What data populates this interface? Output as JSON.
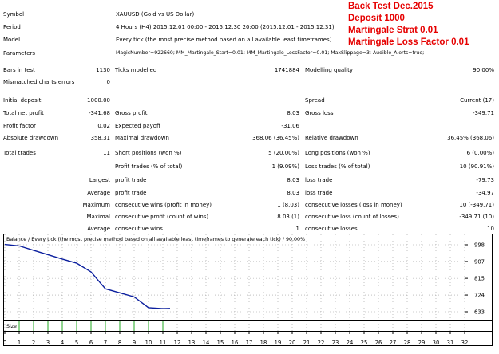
{
  "report": {
    "symbol_label": "Symbol",
    "symbol_value": "XAUUSD (Gold vs US Dollar)",
    "period_label": "Period",
    "period_value": "4 Hours (H4) 2015.12.01 00:00 - 2015.12.30 20:00 (2015.12.01 - 2015.12.31)",
    "model_label": "Model",
    "model_value": "Every tick (the most precise method based on all available least timeframes)",
    "parameters_label": "Parameters",
    "parameters_value": "MagicNumber=922660; MM_Martingale_Start=0.01; MM_Martingale_LossFactor=0.01; MaxSlippage=3; Audible_Alerts=true;",
    "bars_label": "Bars in test",
    "bars_value": "1130",
    "ticks_label": "Ticks modelled",
    "ticks_value": "1741884",
    "quality_label": "Modelling quality",
    "quality_value": "90.00%",
    "mismatch_label": "Mismatched charts errors",
    "mismatch_value": "0",
    "initial_deposit_label": "Initial deposit",
    "initial_deposit_value": "1000.00",
    "spread_label": "Spread",
    "spread_value": "Current (17)",
    "total_net_label": "Total net profit",
    "total_net_value": "-341.68",
    "gross_profit_label": "Gross profit",
    "gross_profit_value": "8.03",
    "gross_loss_label": "Gross loss",
    "gross_loss_value": "-349.71",
    "profit_factor_label": "Profit factor",
    "profit_factor_value": "0.02",
    "expected_payoff_label": "Expected payoff",
    "expected_payoff_value": "-31.06",
    "abs_dd_label": "Absolute drawdown",
    "abs_dd_value": "358.31",
    "max_dd_label": "Maximal drawdown",
    "max_dd_value": "368.06 (36.45%)",
    "rel_dd_label": "Relative drawdown",
    "rel_dd_value": "36.45% (368.06)",
    "total_trades_label": "Total trades",
    "total_trades_value": "11",
    "short_label": "Short positions (won %)",
    "short_value": "5 (20.00%)",
    "long_label": "Long positions (won %)",
    "long_value": "6 (0.00%)",
    "profit_trades_label": "Profit trades (% of total)",
    "profit_trades_value": "1 (9.09%)",
    "loss_trades_label": "Loss trades (% of total)",
    "loss_trades_value": "10 (90.91%)",
    "largest_label": "Largest",
    "largest_profit_label": "profit trade",
    "largest_profit_value": "8.03",
    "largest_loss_label": "loss trade",
    "largest_loss_value": "-79.73",
    "average_label": "Average",
    "average_profit_label": "profit trade",
    "average_profit_value": "8.03",
    "average_loss_label": "loss trade",
    "average_loss_value": "-34.97",
    "maximum_label": "Maximum",
    "max_cons_wins_label": "consecutive wins (profit in money)",
    "max_cons_wins_value": "1 (8.03)",
    "max_cons_losses_label": "consecutive losses (loss in money)",
    "max_cons_losses_value": "10 (-349.71)",
    "maximal_label": "Maximal",
    "maximal_profit_label": "consecutive profit (count of wins)",
    "maximal_profit_value": "8.03 (1)",
    "maximal_loss_label": "consecutive loss (count of losses)",
    "maximal_loss_value": "-349.71 (10)",
    "average2_label": "Average",
    "avg_cons_wins_label": "consecutive wins",
    "avg_cons_wins_value": "1",
    "avg_cons_losses_label": "consecutive losses",
    "avg_cons_losses_value": "10"
  },
  "overlay": {
    "line1": "Back Test Dec.2015",
    "line2": "Deposit 1000",
    "line3": "Martingale Strat 0.01",
    "line4": "Martingale Loss Factor 0.01"
  },
  "colors": {
    "balance_line": "#0b1f9e",
    "size_bars": "#22a822",
    "overlay_text": "#e60000",
    "grid": "#9a9a9a"
  },
  "chart_data": {
    "type": "line",
    "title": "Balance / Every tick (the most precise method based on all available least timeframes to generate each tick) / 90.00%",
    "size_label": "Size",
    "x_ticks": [
      "0",
      "1",
      "2",
      "3",
      "4",
      "5",
      "6",
      "7",
      "8",
      "9",
      "10",
      "11",
      "12",
      "13",
      "14",
      "15",
      "16",
      "17",
      "18",
      "19",
      "20",
      "21",
      "22",
      "23",
      "24",
      "25",
      "26",
      "27",
      "28",
      "29",
      "30",
      "31",
      "32"
    ],
    "y_ticks": [
      "998",
      "907",
      "815",
      "724",
      "633"
    ],
    "xlim": [
      0,
      32
    ],
    "ylim": [
      633,
      998
    ],
    "series": [
      {
        "x": [
          0,
          1,
          2,
          3,
          4,
          5,
          6,
          7,
          8,
          9,
          10,
          11,
          11.5
        ],
        "values": [
          1000,
          992,
          968,
          944,
          920,
          898,
          850,
          758,
          736,
          714,
          655,
          650,
          651
        ]
      }
    ],
    "size_bars": {
      "x": [
        1,
        2,
        3,
        4,
        5,
        6,
        7,
        8,
        9,
        10,
        11
      ],
      "values": [
        1,
        1,
        1,
        1,
        1,
        1,
        1,
        1,
        1,
        1,
        1
      ]
    }
  }
}
